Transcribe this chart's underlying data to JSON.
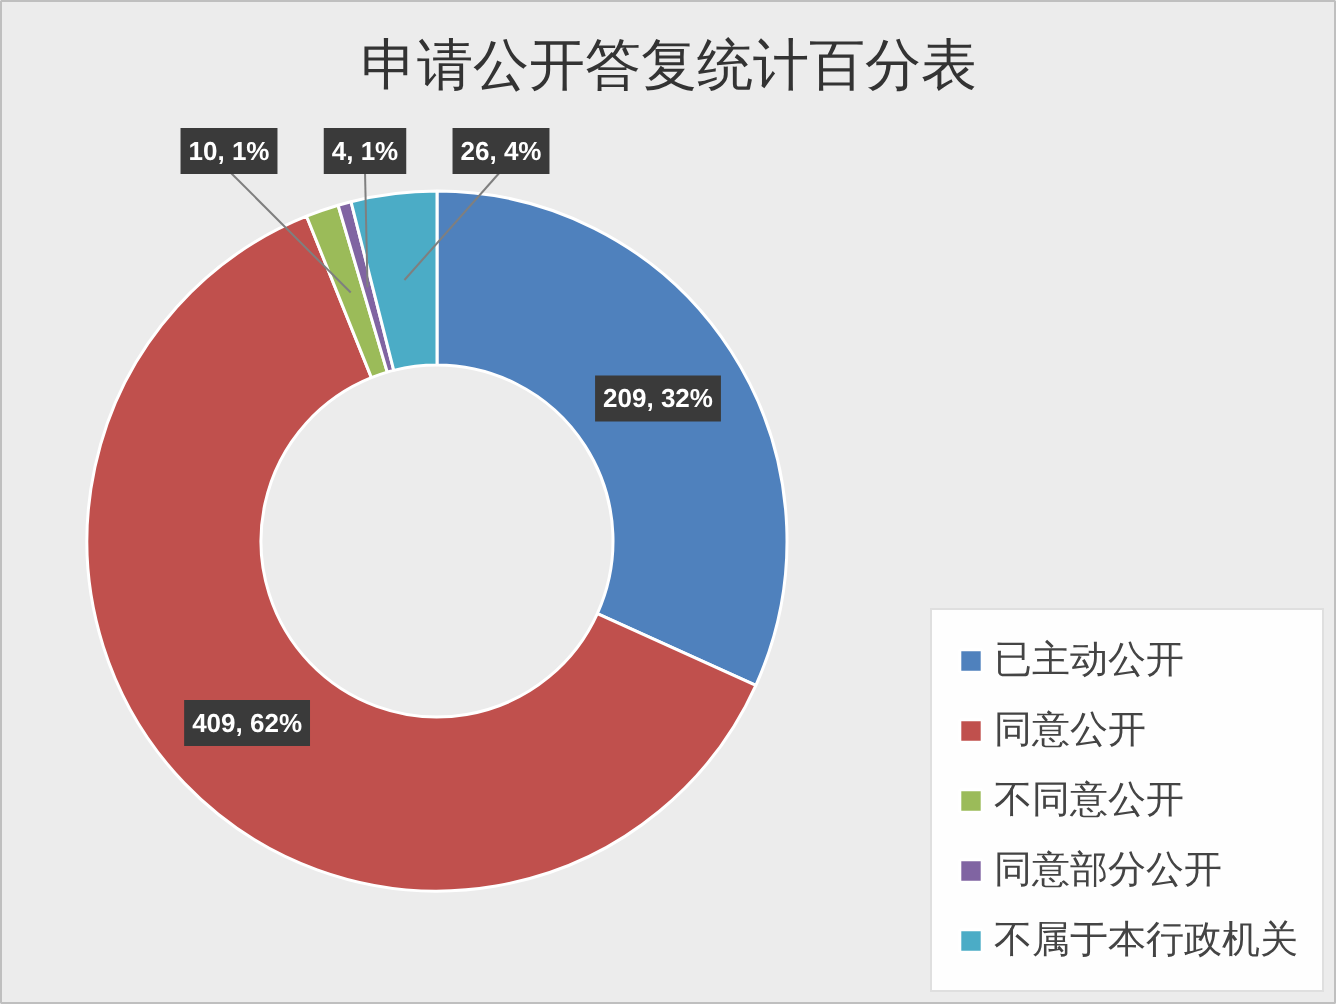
{
  "chart_data": {
    "type": "donut",
    "title": "申请公开答复统计百分表",
    "categories": [
      "已主动公开",
      "同意公开",
      "不同意公开",
      "同意部分公开",
      "不属于本行政机关"
    ],
    "values": [
      209,
      409,
      10,
      4,
      26
    ],
    "colors": [
      "#4f81bd",
      "#c0504d",
      "#9bbb59",
      "#8064a2",
      "#4bacc6"
    ],
    "value_labels": [
      "209, 32%",
      "409, 62%",
      "10, 1%",
      "4, 1%",
      "26, 4%"
    ],
    "legend": "bottom right"
  }
}
